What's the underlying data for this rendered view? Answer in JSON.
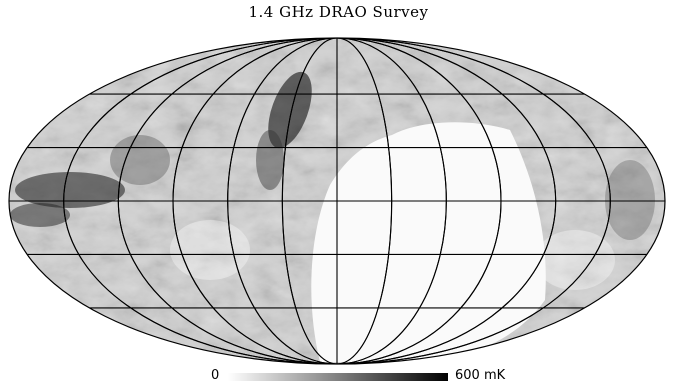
{
  "title": "1.4 GHz DRAO Survey",
  "projection": "mollweide",
  "colorbar": {
    "min_label": "0",
    "max_label": "600 mK",
    "min_value": 0,
    "max_value": 600,
    "unit": "mK",
    "colors": [
      "#ffffff",
      "#000000"
    ]
  },
  "colors": {
    "background": "#ffffff",
    "graticule": "#000000",
    "map_base": "#d2d2d2",
    "unobserved_region": "#fafafa"
  },
  "graticule": {
    "meridian_count": 12,
    "parallel_count": 5
  }
}
